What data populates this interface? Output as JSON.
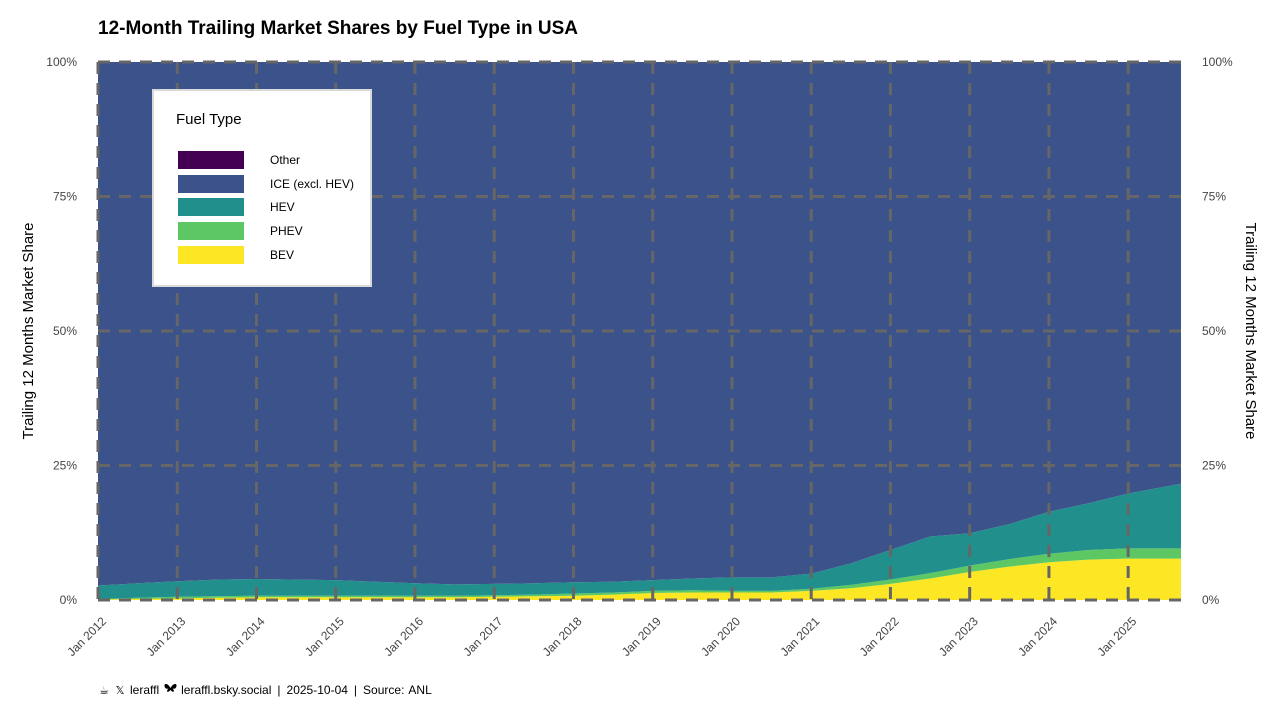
{
  "title": "12-Month Trailing Market Shares by Fuel Type in USA",
  "colors": {
    "Other": "#440154",
    "ICE (excl. HEV)": "#3b528b",
    "HEV": "#21908c",
    "PHEV": "#5dc863",
    "BEV": "#fde725",
    "grid": "#666666"
  },
  "chart_data": {
    "type": "area",
    "stacked": true,
    "xlabel": "",
    "ylabel": "Trailing 12 Months Market Share",
    "ylabel_right": "Trailing 12 Months Market Share",
    "xlim": [
      "2012-01",
      "2025-09"
    ],
    "ylim": [
      0,
      1
    ],
    "x_ticks": [
      "Jan 2012",
      "Jan 2013",
      "Jan 2014",
      "Jan 2015",
      "Jan 2016",
      "Jan 2017",
      "Jan 2018",
      "Jan 2019",
      "Jan 2020",
      "Jan 2021",
      "Jan 2022",
      "Jan 2023",
      "Jan 2024",
      "Jan 2025"
    ],
    "y_ticks": [
      "0%",
      "25%",
      "50%",
      "75%",
      "100%"
    ],
    "grid": true,
    "legend": {
      "title": "Fuel Type",
      "position": "top-left",
      "entries": [
        "Other",
        "ICE (excl. HEV)",
        "HEV",
        "PHEV",
        "BEV"
      ]
    },
    "x": [
      "2012-01",
      "2012-07",
      "2013-01",
      "2013-07",
      "2014-01",
      "2014-07",
      "2015-01",
      "2015-07",
      "2016-01",
      "2016-07",
      "2017-01",
      "2017-07",
      "2018-01",
      "2018-07",
      "2019-01",
      "2019-07",
      "2020-01",
      "2020-07",
      "2021-01",
      "2021-07",
      "2022-01",
      "2022-07",
      "2023-01",
      "2023-07",
      "2024-01",
      "2024-07",
      "2025-01",
      "2025-09"
    ],
    "series": [
      {
        "name": "BEV",
        "values": [
          0.001,
          0.002,
          0.003,
          0.004,
          0.005,
          0.005,
          0.005,
          0.005,
          0.005,
          0.005,
          0.006,
          0.007,
          0.008,
          0.01,
          0.013,
          0.014,
          0.014,
          0.014,
          0.017,
          0.022,
          0.03,
          0.04,
          0.052,
          0.062,
          0.07,
          0.075,
          0.077,
          0.077
        ]
      },
      {
        "name": "PHEV",
        "values": [
          0.001,
          0.002,
          0.003,
          0.003,
          0.003,
          0.003,
          0.003,
          0.003,
          0.003,
          0.003,
          0.003,
          0.003,
          0.004,
          0.004,
          0.004,
          0.004,
          0.003,
          0.003,
          0.004,
          0.006,
          0.008,
          0.01,
          0.012,
          0.014,
          0.016,
          0.018,
          0.019,
          0.019
        ]
      },
      {
        "name": "HEV",
        "values": [
          0.025,
          0.027,
          0.029,
          0.031,
          0.031,
          0.03,
          0.029,
          0.026,
          0.023,
          0.021,
          0.021,
          0.021,
          0.021,
          0.02,
          0.02,
          0.022,
          0.025,
          0.025,
          0.028,
          0.04,
          0.055,
          0.068,
          0.06,
          0.065,
          0.078,
          0.087,
          0.102,
          0.12
        ]
      },
      {
        "name": "ICE (excl. HEV)",
        "values": [
          0.973,
          0.969,
          0.965,
          0.962,
          0.961,
          0.962,
          0.963,
          0.966,
          0.969,
          0.971,
          0.97,
          0.969,
          0.967,
          0.966,
          0.963,
          0.96,
          0.958,
          0.958,
          0.951,
          0.932,
          0.907,
          0.882,
          0.876,
          0.859,
          0.836,
          0.82,
          0.802,
          0.784
        ]
      },
      {
        "name": "Other",
        "values": [
          0,
          0,
          0,
          0,
          0,
          0,
          0,
          0,
          0,
          0,
          0,
          0,
          0,
          0,
          0,
          0,
          0,
          0,
          0,
          0,
          0,
          0,
          0,
          0,
          0,
          0,
          0,
          0
        ]
      }
    ]
  },
  "footer": {
    "handle_x": "leraffl",
    "handle_bsky": "leraffl.bsky.social",
    "date": "2025-10-04",
    "source_label": "Source:",
    "source": "ANL",
    "pipe": "|",
    "icons": [
      "coffee-icon",
      "x-logo-icon",
      "butterfly-icon"
    ]
  }
}
